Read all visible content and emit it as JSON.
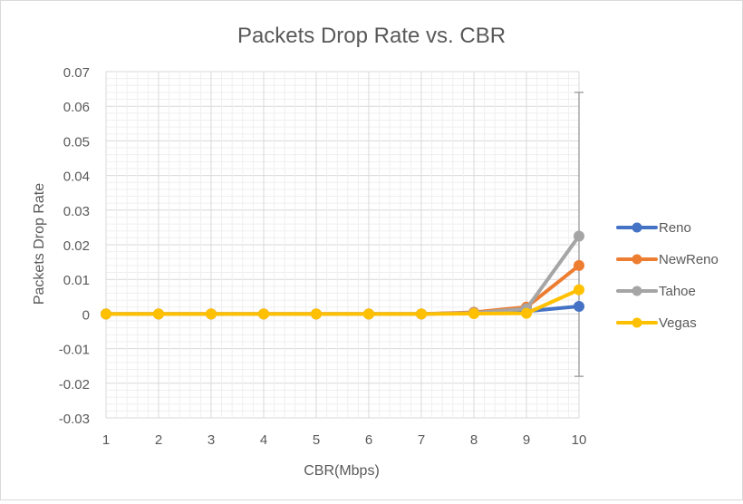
{
  "chart_data": {
    "type": "line",
    "title": "Packets Drop Rate vs. CBR",
    "xlabel": "CBR(Mbps)",
    "ylabel": "Packets Drop  Rate",
    "x": [
      1,
      2,
      3,
      4,
      5,
      6,
      7,
      8,
      9,
      10
    ],
    "ylim": [
      -0.03,
      0.07
    ],
    "yticks": [
      "0.07",
      "0.06",
      "0.05",
      "0.04",
      "0.03",
      "0.02",
      "0.01",
      "0",
      "-0.01",
      "-0.02",
      "-0.03"
    ],
    "ytick_values": [
      0.07,
      0.06,
      0.05,
      0.04,
      0.03,
      0.02,
      0.01,
      0,
      -0.01,
      -0.02,
      -0.03
    ],
    "grid": true,
    "legend_position": "right",
    "series": [
      {
        "name": "Reno",
        "color": "#4472c4",
        "values": [
          0,
          0,
          0,
          0,
          0,
          0,
          0,
          0.0003,
          0.0008,
          0.0022
        ]
      },
      {
        "name": "NewReno",
        "color": "#ed7d31",
        "values": [
          0,
          0,
          0,
          0,
          0,
          0,
          0,
          0.0005,
          0.002,
          0.014
        ]
      },
      {
        "name": "Tahoe",
        "color": "#a5a5a5",
        "values": [
          0,
          0,
          0,
          0,
          0,
          0,
          0,
          0.0003,
          0.0015,
          0.0225
        ]
      },
      {
        "name": "Vegas",
        "color": "#ffc000",
        "values": [
          0,
          0,
          0,
          0,
          0,
          0,
          0,
          0.0001,
          0.0002,
          0.007
        ]
      }
    ]
  }
}
